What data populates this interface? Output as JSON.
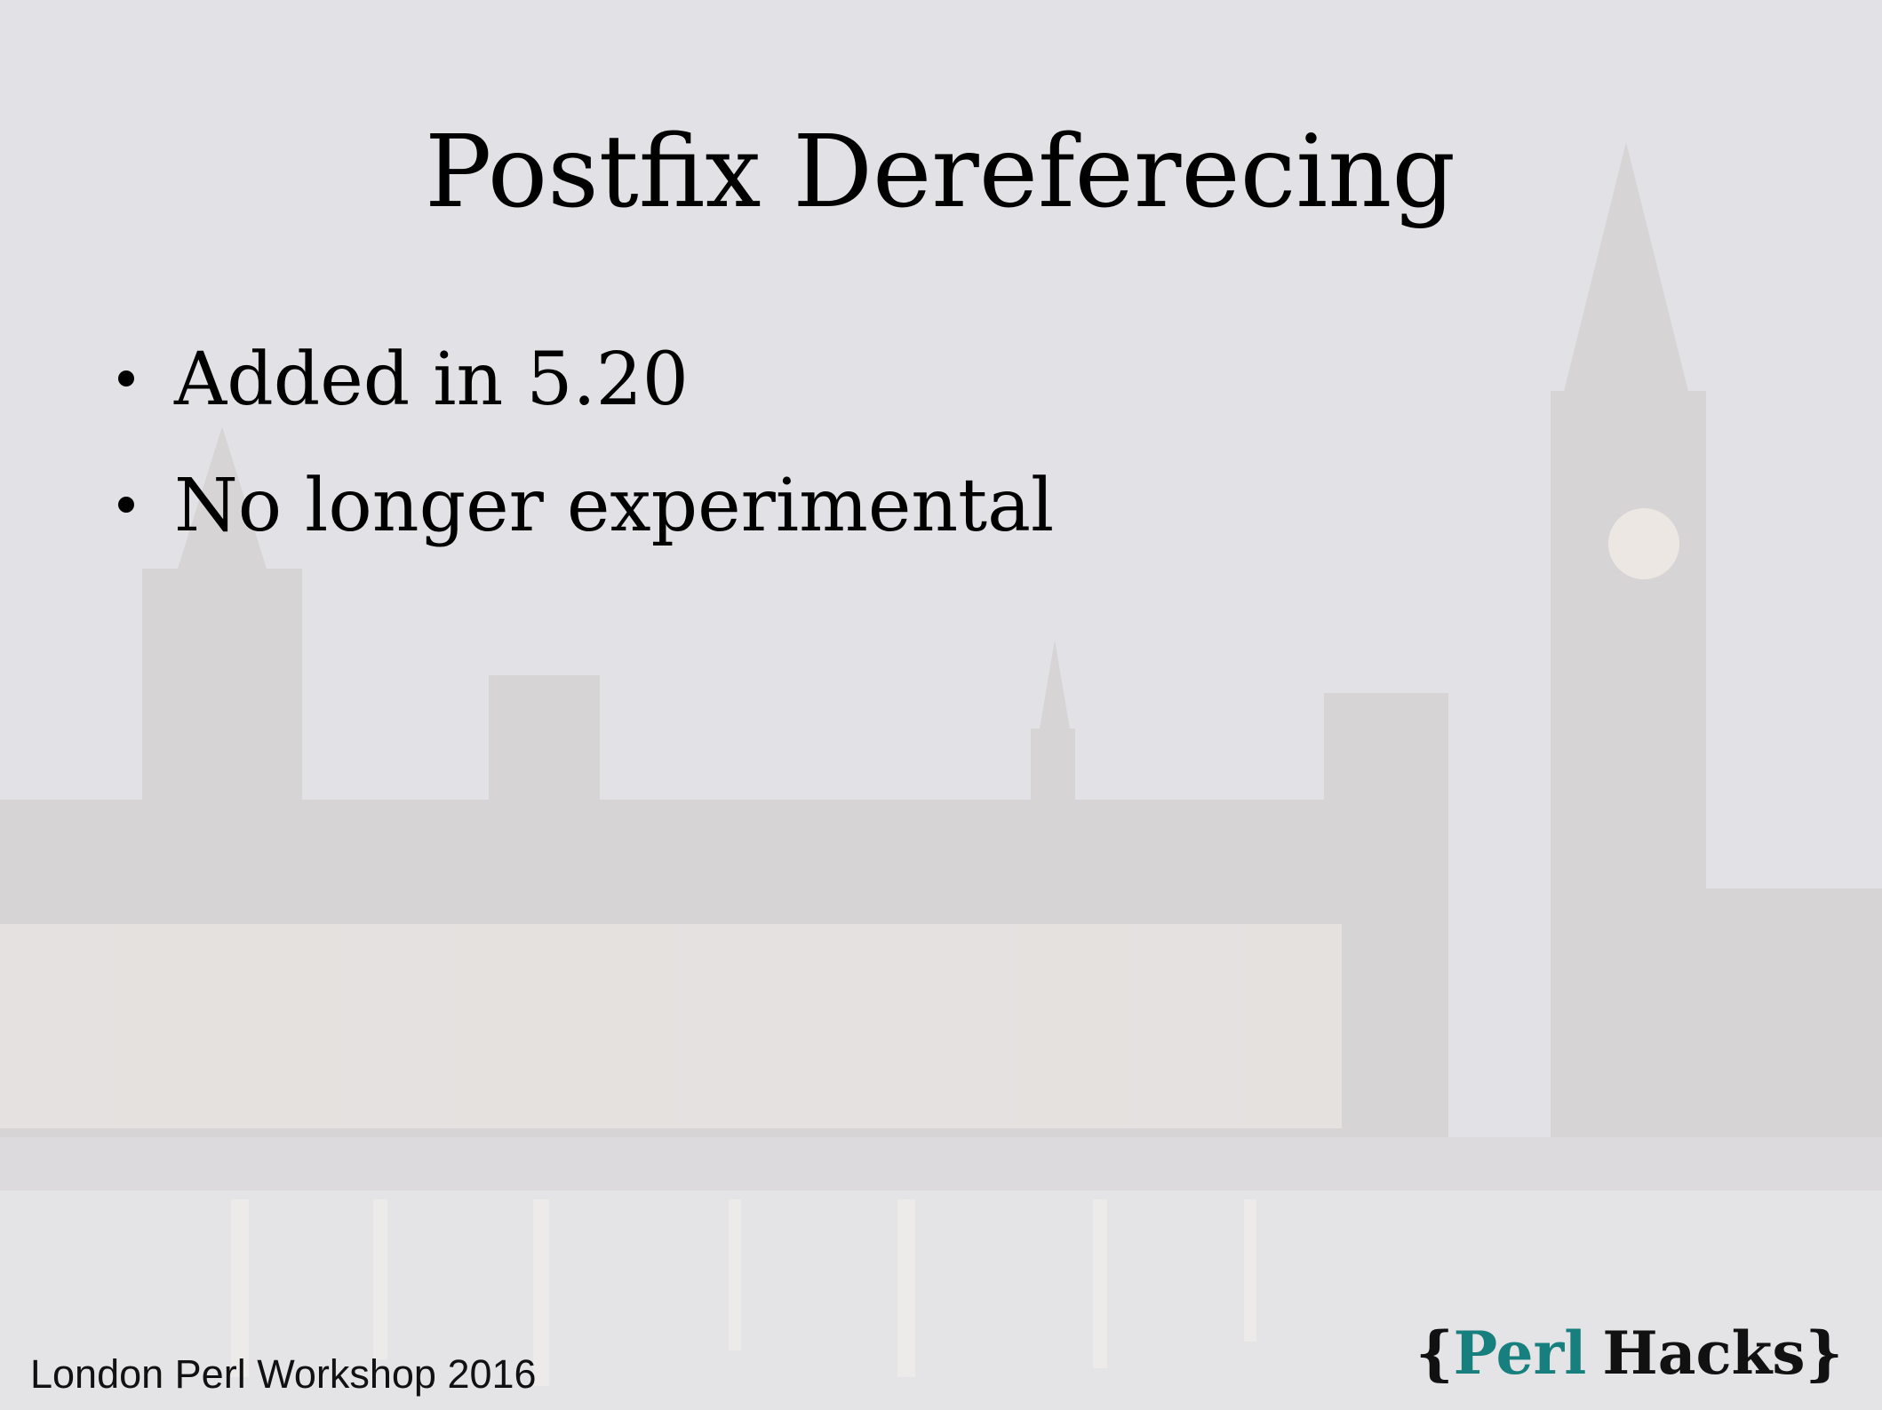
{
  "slide": {
    "title": "Postfix Dereferecing",
    "bullets": [
      "Added in 5.20",
      "No longer experimental"
    ],
    "footer": "London Perl Workshop 2016",
    "logo": {
      "open": "{",
      "perl": "Perl",
      "hacks": "Hacks",
      "close": "}"
    }
  }
}
